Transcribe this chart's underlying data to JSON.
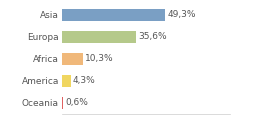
{
  "categories": [
    "Asia",
    "Europa",
    "Africa",
    "America",
    "Oceania"
  ],
  "values": [
    49.3,
    35.6,
    10.3,
    4.3,
    0.6
  ],
  "labels": [
    "49,3%",
    "35,6%",
    "10,3%",
    "4,3%",
    "0,6%"
  ],
  "bar_colors": [
    "#7A9FC4",
    "#B5C98A",
    "#F0B87A",
    "#F0D660",
    "#E06060"
  ],
  "background_color": "#ffffff",
  "xlim": [
    0,
    80
  ],
  "label_fontsize": 6.5,
  "category_fontsize": 6.5,
  "bar_height": 0.55
}
